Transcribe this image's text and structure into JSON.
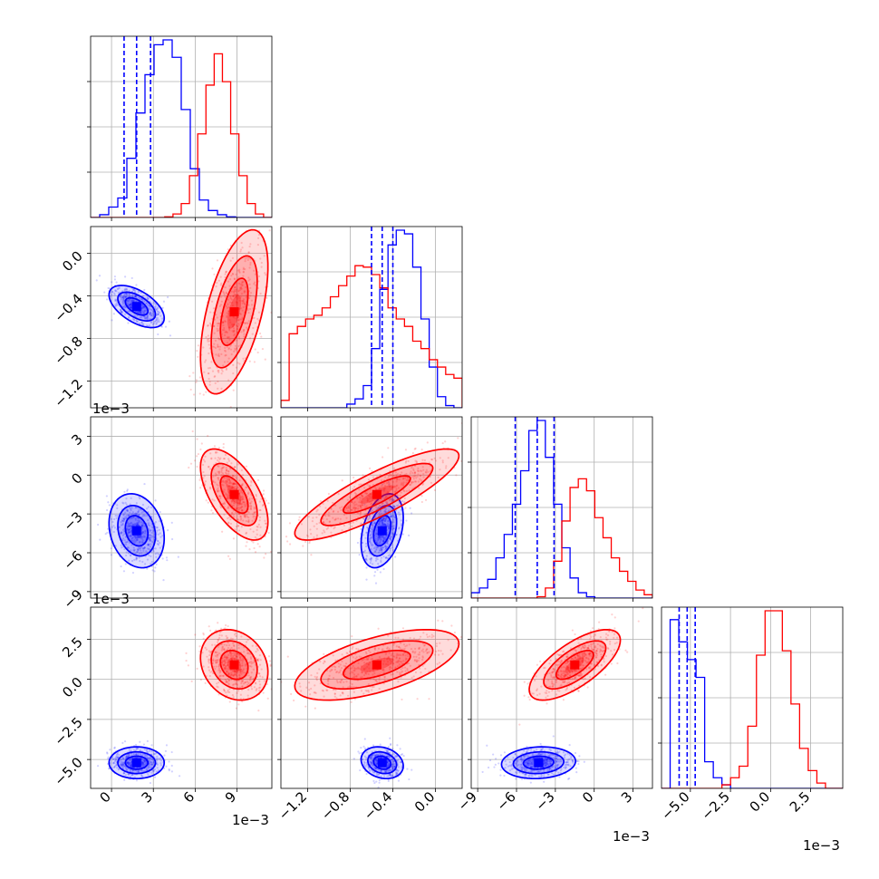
{
  "colors": {
    "series_a": "#0000ff",
    "series_b": "#ff0000",
    "grid": "#b0b0b0",
    "axes": "#000000"
  },
  "chart_data": {
    "type": "corner",
    "offsets": [
      "1e−3",
      "1e−3",
      "1e−3",
      "1e−3"
    ],
    "params": [
      {
        "range": [
          -1.5,
          11.5
        ],
        "ticks": [
          0,
          3,
          6,
          9
        ],
        "tick_labels": [
          "0",
          "3",
          "6",
          "9"
        ]
      },
      {
        "range": [
          -1.45,
          0.25
        ],
        "ticks": [
          -1.2,
          -0.8,
          -0.4,
          0.0
        ],
        "tick_labels": [
          "−1.2",
          "−0.8",
          "−0.4",
          "0.0"
        ]
      },
      {
        "range": [
          -9.5,
          4.5
        ],
        "ticks": [
          -9,
          -6,
          -3,
          0,
          3
        ],
        "tick_labels": [
          "−9",
          "−6",
          "−3",
          "0",
          "3"
        ]
      },
      {
        "range": [
          -6.8,
          4.5
        ],
        "ticks": [
          -5,
          -2.5,
          0,
          2.5
        ],
        "tick_labels": [
          "−5.0",
          "−2.5",
          "0.0",
          "2.5"
        ]
      }
    ],
    "series": [
      {
        "color": "#0000ff",
        "mean": [
          1.8,
          -0.5,
          -4.3,
          -5.2
        ],
        "sd": [
          0.9,
          0.09,
          1.3,
          0.45
        ],
        "quantiles": [
          [
            0.9,
            1.8,
            2.8
          ],
          [
            -0.6,
            -0.5,
            -0.4
          ],
          [
            -6.1,
            -4.4,
            -3.1
          ],
          [
            -5.7,
            -5.2,
            -4.7
          ]
        ]
      },
      {
        "color": "#ff0000",
        "mean": [
          8.8,
          -0.55,
          -1.5,
          0.9
        ],
        "sd": [
          1.1,
          0.35,
          1.6,
          1.0
        ],
        "quantiles": []
      }
    ],
    "histograms": [
      {
        "xmin": -1.5,
        "xmax": 11.5,
        "counts": {
          "blue": [
            0,
            4,
            15,
            28,
            85,
            150,
            205,
            248,
            255,
            230,
            155,
            70,
            25,
            10,
            4,
            1,
            0,
            0,
            0,
            0
          ],
          "red": [
            0,
            0,
            0,
            0,
            0,
            0,
            0,
            0,
            0,
            1,
            5,
            20,
            60,
            120,
            190,
            235,
            195,
            120,
            60,
            20,
            5,
            0
          ]
        }
      },
      {
        "xmin": -1.45,
        "xmax": 0.25,
        "counts": {
          "blue": [
            0,
            0,
            0,
            0,
            0,
            0,
            0,
            0,
            5,
            12,
            30,
            80,
            160,
            220,
            240,
            235,
            190,
            120,
            55,
            15,
            3,
            0
          ],
          "red": [
            10,
            100,
            110,
            120,
            125,
            135,
            150,
            165,
            178,
            192,
            190,
            180,
            162,
            135,
            120,
            110,
            90,
            80,
            65,
            55,
            45,
            40
          ]
        }
      },
      {
        "xmin": -9.5,
        "xmax": 4.5,
        "counts": {
          "blue": [
            8,
            15,
            28,
            60,
            95,
            140,
            190,
            250,
            265,
            210,
            140,
            75,
            30,
            8,
            2,
            0,
            0,
            0,
            0,
            0,
            0,
            0
          ],
          "red": [
            0,
            0,
            0,
            0,
            0,
            0,
            0,
            0,
            2,
            15,
            55,
            115,
            165,
            178,
            160,
            120,
            90,
            60,
            40,
            25,
            12,
            5
          ]
        }
      },
      {
        "xmin": -6.8,
        "xmax": 4.5,
        "counts": {
          "blue": [
            0,
            190,
            165,
            145,
            125,
            30,
            12,
            4,
            0,
            0,
            0,
            0,
            0,
            0,
            0,
            0,
            0,
            0,
            0,
            0,
            0
          ],
          "red": [
            0,
            0,
            0,
            0,
            0,
            0,
            0,
            4,
            12,
            25,
            70,
            150,
            200,
            200,
            155,
            95,
            45,
            20,
            6,
            0,
            0
          ]
        }
      }
    ],
    "grid": true
  }
}
